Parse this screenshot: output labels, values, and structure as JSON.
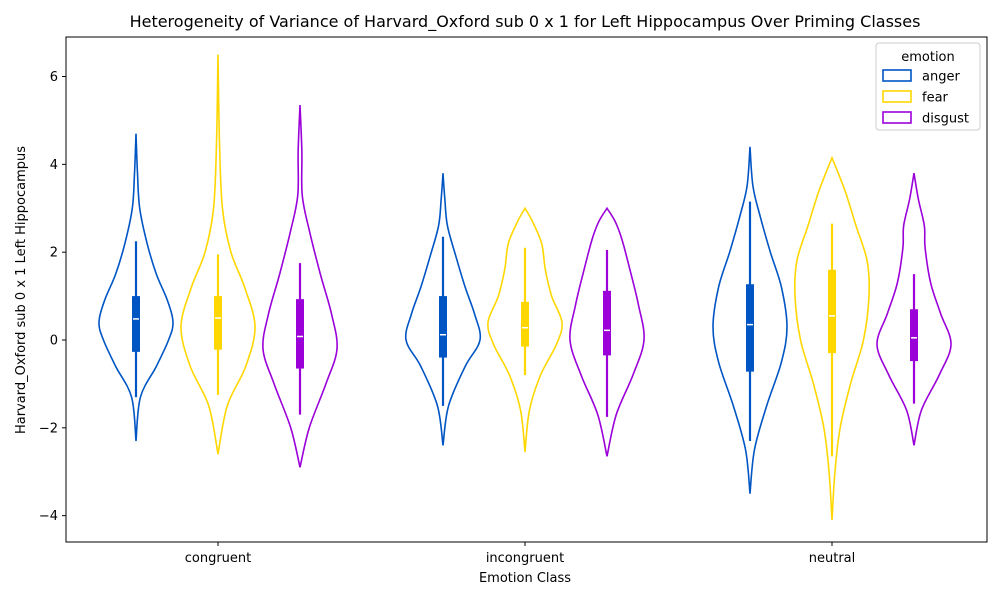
{
  "chart_data": {
    "type": "violin",
    "title": "Heterogeneity of Variance of Harvard_Oxford sub 0 x 1 for Left Hippocampus Over Priming Classes",
    "xlabel": "Emotion Class",
    "ylabel": "Harvard_Oxford sub 0 x 1 Left Hippocampus",
    "categories": [
      "congruent",
      "incongruent",
      "neutral"
    ],
    "ylim": [
      -4.6,
      6.9
    ],
    "yticks": [
      -4,
      -2,
      0,
      2,
      4,
      6
    ],
    "legend": {
      "title": "emotion",
      "position": "top-right"
    },
    "series": [
      {
        "name": "anger",
        "color": "#0055c4",
        "groups": [
          {
            "category": "congruent",
            "min": -2.3,
            "max": 4.7,
            "q1": -0.27,
            "median": 0.48,
            "q3": 1.0,
            "whisker_low": -1.3,
            "whisker_high": 2.25,
            "profile": [
              [
                -2.3,
                0.0
              ],
              [
                -1.3,
                0.12
              ],
              [
                -0.6,
                0.55
              ],
              [
                0.0,
                0.88
              ],
              [
                0.4,
                1.0
              ],
              [
                0.9,
                0.85
              ],
              [
                1.5,
                0.55
              ],
              [
                2.2,
                0.3
              ],
              [
                3.0,
                0.1
              ],
              [
                3.8,
                0.04
              ],
              [
                4.7,
                0.0
              ]
            ]
          },
          {
            "category": "incongruent",
            "min": -2.4,
            "max": 3.8,
            "q1": -0.4,
            "median": 0.12,
            "q3": 1.0,
            "whisker_low": -1.5,
            "whisker_high": 2.35,
            "profile": [
              [
                -2.4,
                0.0
              ],
              [
                -1.5,
                0.15
              ],
              [
                -0.6,
                0.6
              ],
              [
                0.0,
                1.0
              ],
              [
                0.6,
                0.85
              ],
              [
                1.2,
                0.6
              ],
              [
                1.9,
                0.35
              ],
              [
                2.6,
                0.12
              ],
              [
                3.2,
                0.05
              ],
              [
                3.8,
                0.0
              ]
            ]
          },
          {
            "category": "neutral",
            "min": -3.5,
            "max": 4.4,
            "q1": -0.72,
            "median": 0.35,
            "q3": 1.27,
            "whisker_low": -2.3,
            "whisker_high": 3.15,
            "profile": [
              [
                -3.5,
                0.0
              ],
              [
                -2.5,
                0.12
              ],
              [
                -1.5,
                0.45
              ],
              [
                -0.5,
                0.85
              ],
              [
                0.3,
                1.0
              ],
              [
                1.2,
                0.85
              ],
              [
                2.0,
                0.55
              ],
              [
                2.8,
                0.28
              ],
              [
                3.5,
                0.08
              ],
              [
                4.4,
                0.0
              ]
            ]
          }
        ]
      },
      {
        "name": "fear",
        "color": "#ffd700",
        "groups": [
          {
            "category": "congruent",
            "min": -2.6,
            "max": 6.5,
            "q1": -0.22,
            "median": 0.5,
            "q3": 1.0,
            "whisker_low": -1.25,
            "whisker_high": 1.95,
            "profile": [
              [
                -2.6,
                0.0
              ],
              [
                -1.5,
                0.25
              ],
              [
                -0.6,
                0.75
              ],
              [
                0.3,
                1.0
              ],
              [
                1.2,
                0.72
              ],
              [
                2.0,
                0.35
              ],
              [
                3.0,
                0.12
              ],
              [
                4.5,
                0.04
              ],
              [
                6.5,
                0.0
              ]
            ]
          },
          {
            "category": "incongruent",
            "min": -2.55,
            "max": 3.0,
            "q1": -0.15,
            "median": 0.28,
            "q3": 0.87,
            "whisker_low": -0.8,
            "whisker_high": 2.1,
            "profile": [
              [
                -2.55,
                0.0
              ],
              [
                -1.6,
                0.12
              ],
              [
                -0.8,
                0.42
              ],
              [
                -0.1,
                0.85
              ],
              [
                0.4,
                1.0
              ],
              [
                1.0,
                0.72
              ],
              [
                1.6,
                0.55
              ],
              [
                2.2,
                0.45
              ],
              [
                2.7,
                0.2
              ],
              [
                3.0,
                0.0
              ]
            ]
          },
          {
            "category": "neutral",
            "min": -4.1,
            "max": 4.15,
            "q1": -0.3,
            "median": 0.55,
            "q3": 1.6,
            "whisker_low": -2.65,
            "whisker_high": 2.65,
            "profile": [
              [
                -4.1,
                0.0
              ],
              [
                -3.0,
                0.08
              ],
              [
                -2.0,
                0.22
              ],
              [
                -1.0,
                0.5
              ],
              [
                0.0,
                0.85
              ],
              [
                1.0,
                1.0
              ],
              [
                1.8,
                0.95
              ],
              [
                2.6,
                0.65
              ],
              [
                3.4,
                0.35
              ],
              [
                4.15,
                0.0
              ]
            ]
          }
        ]
      },
      {
        "name": "disgust",
        "color": "#9b00d9",
        "groups": [
          {
            "category": "congruent",
            "min": -2.9,
            "max": 5.35,
            "q1": -0.65,
            "median": 0.08,
            "q3": 0.93,
            "whisker_low": -1.7,
            "whisker_high": 1.75,
            "profile": [
              [
                -2.9,
                0.0
              ],
              [
                -2.0,
                0.25
              ],
              [
                -1.0,
                0.7
              ],
              [
                -0.2,
                1.0
              ],
              [
                0.6,
                0.85
              ],
              [
                1.5,
                0.55
              ],
              [
                2.5,
                0.25
              ],
              [
                3.3,
                0.06
              ],
              [
                4.3,
                0.05
              ],
              [
                5.35,
                0.0
              ]
            ]
          },
          {
            "category": "incongruent",
            "min": -2.65,
            "max": 3.0,
            "q1": -0.35,
            "median": 0.22,
            "q3": 1.12,
            "whisker_low": -1.75,
            "whisker_high": 2.05,
            "profile": [
              [
                -2.65,
                0.0
              ],
              [
                -1.7,
                0.25
              ],
              [
                -0.8,
                0.7
              ],
              [
                0.0,
                1.0
              ],
              [
                0.8,
                0.85
              ],
              [
                1.6,
                0.62
              ],
              [
                2.3,
                0.4
              ],
              [
                2.7,
                0.22
              ],
              [
                3.0,
                0.0
              ]
            ]
          },
          {
            "category": "neutral",
            "min": -2.4,
            "max": 3.8,
            "q1": -0.48,
            "median": 0.05,
            "q3": 0.7,
            "whisker_low": -1.45,
            "whisker_high": 1.5,
            "profile": [
              [
                -2.4,
                0.0
              ],
              [
                -1.6,
                0.2
              ],
              [
                -0.8,
                0.68
              ],
              [
                -0.1,
                1.0
              ],
              [
                0.6,
                0.72
              ],
              [
                1.3,
                0.45
              ],
              [
                2.1,
                0.3
              ],
              [
                2.6,
                0.28
              ],
              [
                3.2,
                0.12
              ],
              [
                3.8,
                0.0
              ]
            ]
          }
        ]
      }
    ]
  }
}
